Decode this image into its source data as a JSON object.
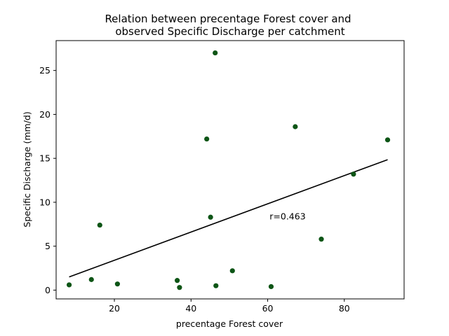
{
  "chart_data": {
    "type": "scatter",
    "title_lines": [
      "Relation between precentage Forest cover and",
      "observed Specific Discharge  per catchment"
    ],
    "xlabel": "precentage Forest cover",
    "ylabel": "Specific Discharge (mm/d)",
    "xlim": [
      4.8,
      95.6
    ],
    "ylim": [
      -1.0,
      28.4
    ],
    "xticks": [
      20,
      40,
      60,
      80
    ],
    "yticks": [
      0,
      5,
      10,
      15,
      20,
      25
    ],
    "grid": false,
    "point_color": "#0d5516",
    "line_color": "#000000",
    "points": [
      {
        "x": 8.2,
        "y": 0.6
      },
      {
        "x": 14.0,
        "y": 1.2
      },
      {
        "x": 16.2,
        "y": 7.4
      },
      {
        "x": 20.8,
        "y": 0.7
      },
      {
        "x": 36.4,
        "y": 1.1
      },
      {
        "x": 37.0,
        "y": 0.3
      },
      {
        "x": 44.1,
        "y": 17.2
      },
      {
        "x": 45.1,
        "y": 8.3
      },
      {
        "x": 46.3,
        "y": 27.0
      },
      {
        "x": 46.5,
        "y": 0.5
      },
      {
        "x": 50.8,
        "y": 2.2
      },
      {
        "x": 60.9,
        "y": 0.4
      },
      {
        "x": 67.2,
        "y": 18.6
      },
      {
        "x": 74.0,
        "y": 5.8
      },
      {
        "x": 82.4,
        "y": 13.2
      },
      {
        "x": 91.3,
        "y": 17.1
      }
    ],
    "regression_line": {
      "x": [
        8.2,
        91.3
      ],
      "y": [
        1.5,
        14.85
      ]
    },
    "annotation": {
      "text": "r=0.463",
      "x": 60.5,
      "y": 8.4
    }
  }
}
